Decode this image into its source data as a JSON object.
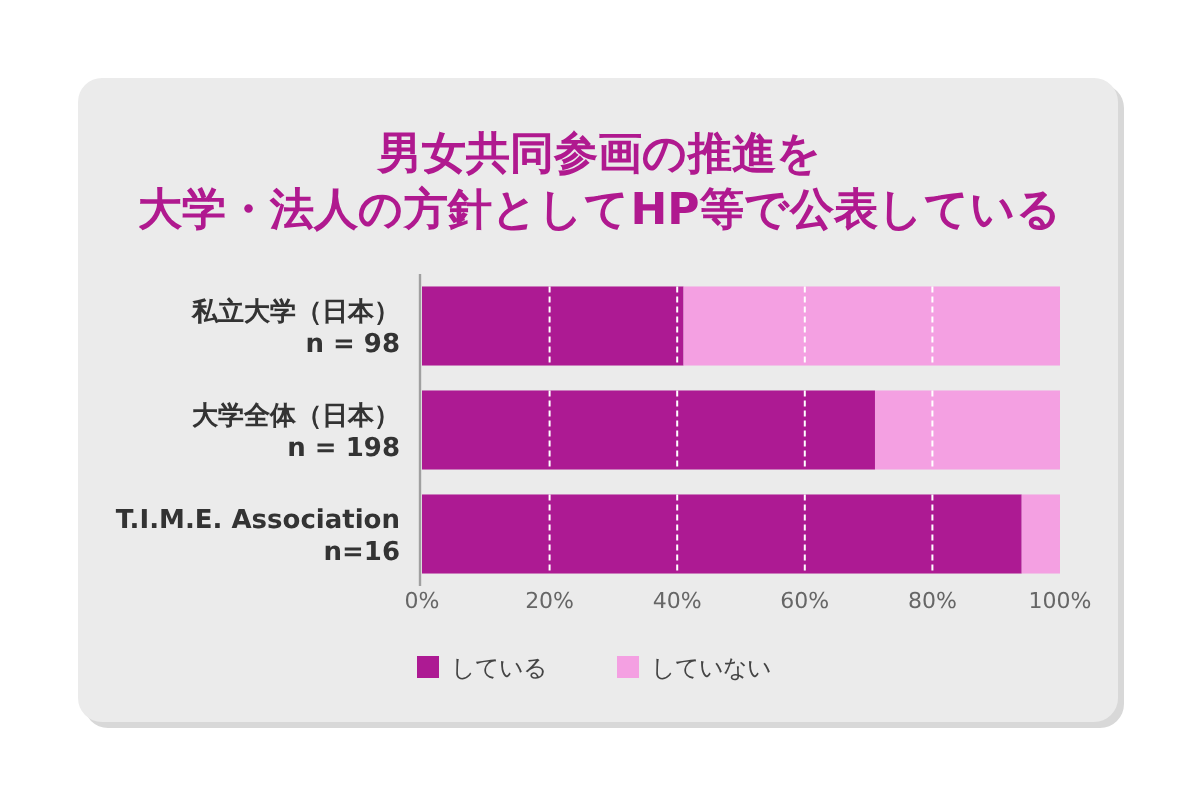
{
  "chart_data": {
    "type": "bar",
    "title": "男女共同参画の推進を",
    "subtitle": "大学・法人の方針としてHP等で公表している",
    "categories": [
      "私立大学（日本）\nn = 98",
      "大学全体（日本）\nn = 198",
      "T.I.M.E. Association\nn=16"
    ],
    "orientation": "horizontal",
    "stacked": true,
    "series": [
      {
        "name": "している",
        "color": "#ad1a93",
        "values": [
          41,
          71,
          94
        ]
      },
      {
        "name": "していない",
        "color": "#f4a0e2",
        "values": [
          59,
          29,
          6
        ]
      }
    ],
    "xlim": [
      0,
      100
    ],
    "xticks": [
      {
        "value": 0,
        "label": "0%"
      },
      {
        "value": 20,
        "label": "20%"
      },
      {
        "value": 40,
        "label": "40%"
      },
      {
        "value": 60,
        "label": "60%"
      },
      {
        "value": 80,
        "label": "80%"
      },
      {
        "value": 100,
        "label": "100%"
      }
    ],
    "grid": "x",
    "legend": "bottom"
  }
}
